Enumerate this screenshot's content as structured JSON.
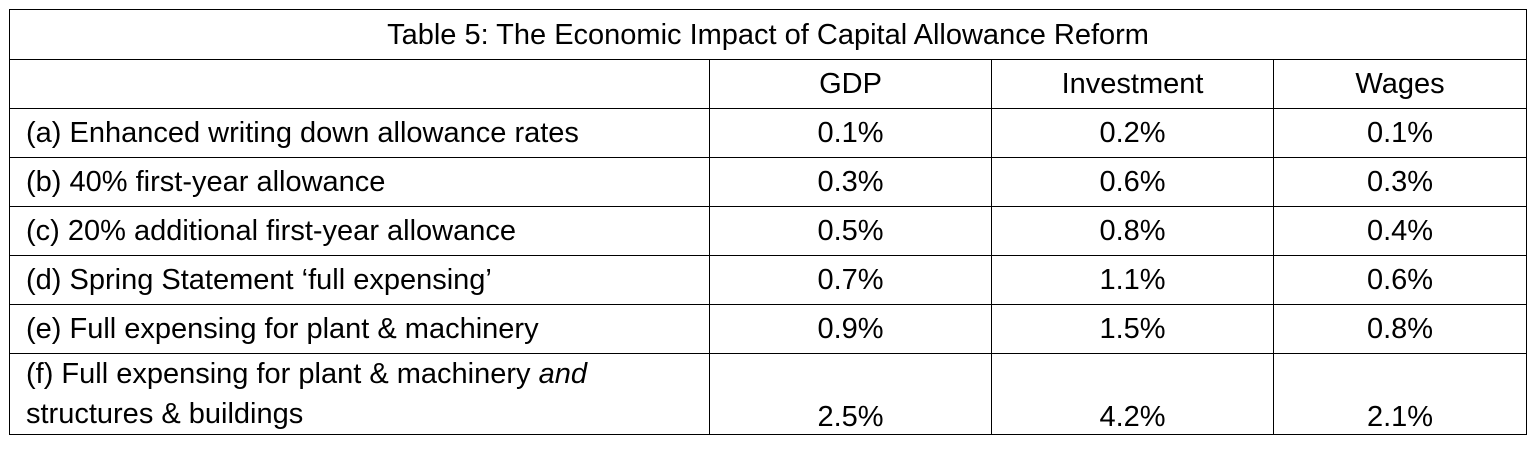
{
  "table": {
    "title": "Table 5: The Economic Impact of Capital Allowance Reform",
    "columns": [
      "",
      "GDP",
      "Investment",
      "Wages"
    ],
    "rows": [
      {
        "label": "(a) Enhanced writing down allowance rates",
        "gdp": "0.1%",
        "investment": "0.2%",
        "wages": "0.1%"
      },
      {
        "label": "(b) 40% first-year allowance",
        "gdp": "0.3%",
        "investment": "0.6%",
        "wages": "0.3%"
      },
      {
        "label": "(c) 20% additional first-year allowance",
        "gdp": "0.5%",
        "investment": "0.8%",
        "wages": "0.4%"
      },
      {
        "label": "(d) Spring Statement ‘full expensing’",
        "gdp": "0.7%",
        "investment": "1.1%",
        "wages": "0.6%"
      },
      {
        "label": "(e) Full expensing for plant & machinery",
        "gdp": "0.9%",
        "investment": "1.5%",
        "wages": "0.8%"
      },
      {
        "label_line1_pre": "(f) Full expensing for plant & machinery ",
        "label_line1_em": "and",
        "label_line2": "structures & buildings",
        "gdp": "2.5%",
        "investment": "4.2%",
        "wages": "2.1%"
      }
    ]
  }
}
